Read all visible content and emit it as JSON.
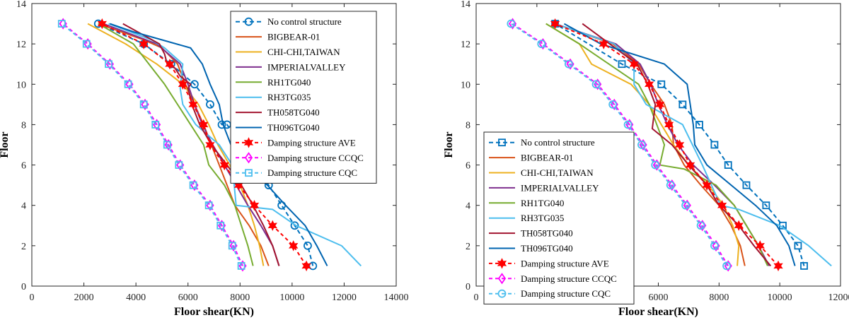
{
  "chart_data": [
    {
      "type": "line",
      "xlabel": "Floor shear(KN)",
      "ylabel": "Floor",
      "xlim": [
        0,
        14000
      ],
      "ylim": [
        0,
        14
      ],
      "xticks": [
        0,
        2000,
        4000,
        6000,
        8000,
        10000,
        12000,
        14000
      ],
      "yticks": [
        0,
        2,
        4,
        6,
        8,
        10,
        12,
        14
      ],
      "xtick_labels": [
        "0",
        "2000",
        "4000",
        "6000",
        "8000",
        "10000",
        "12000",
        "14000"
      ],
      "ytick_labels": [
        "0",
        "2",
        "4",
        "6",
        "8",
        "10",
        "12",
        "14"
      ],
      "grid": false,
      "legend_position": "top-right",
      "series": [
        {
          "name": "No control structure",
          "color": "#0072BD",
          "dash": "6,4",
          "marker": "circle",
          "x": [
            10800,
            10600,
            10100,
            9600,
            9100,
            8600,
            8050,
            7500,
            7300,
            6850,
            6250,
            5350,
            4300,
            2550
          ],
          "y": [
            1,
            2,
            3,
            4,
            5,
            6,
            7,
            8,
            8,
            9,
            10,
            11,
            12,
            13
          ]
        },
        {
          "name": "BIGBEAR-01",
          "color": "#D95319",
          "dash": "",
          "marker": "none",
          "x": [
            9100,
            8800,
            8350,
            7800,
            7500,
            7200,
            6900,
            6600,
            6250,
            5900,
            5600,
            5000,
            4300,
            2550
          ],
          "y": [
            1,
            2,
            3,
            4,
            5,
            6,
            7,
            8,
            9,
            10,
            11,
            11.8,
            12.2,
            13
          ]
        },
        {
          "name": "CHI-CHI,TAIWAN",
          "color": "#EDB120",
          "dash": "",
          "marker": "none",
          "x": [
            8900,
            8750,
            8550,
            8300,
            8000,
            7600,
            7150,
            6800,
            6400,
            5800,
            4800,
            3600,
            2150
          ],
          "y": [
            1,
            2,
            3,
            4,
            5,
            6,
            7,
            8,
            9,
            10,
            11,
            12,
            13
          ]
        },
        {
          "name": "IMPERIALVALLEY",
          "color": "#7E2F8E",
          "dash": "",
          "marker": "none",
          "x": [
            9500,
            9250,
            8800,
            8300,
            7850,
            7400,
            6950,
            6550,
            6250,
            6000,
            5700,
            4800,
            2750
          ],
          "y": [
            1,
            2,
            3,
            4,
            5,
            6,
            7,
            8,
            9,
            10,
            11,
            12,
            13
          ]
        },
        {
          "name": "RH1TG040",
          "color": "#77AC30",
          "dash": "",
          "marker": "none",
          "x": [
            8500,
            8300,
            8050,
            7800,
            7400,
            6800,
            6600,
            6100,
            5600,
            5100,
            4500,
            3900,
            2550
          ],
          "y": [
            1,
            2,
            3,
            4,
            5,
            6,
            7,
            8,
            9,
            10,
            11,
            12,
            13
          ]
        },
        {
          "name": "RH3TG035",
          "color": "#4DBEEE",
          "dash": "",
          "marker": "none",
          "x": [
            12650,
            11900,
            10150,
            9250,
            7850,
            7700,
            7200,
            6300,
            5800,
            5700,
            5800,
            5100,
            4600,
            2950
          ],
          "y": [
            1,
            2,
            3,
            3.8,
            4,
            6,
            7,
            8,
            9,
            9.8,
            11,
            11.8,
            12.2,
            13
          ]
        },
        {
          "name": "TH058TG040",
          "color": "#A2142F",
          "dash": "",
          "marker": "none",
          "x": [
            9500,
            9250,
            8900,
            8500,
            8050,
            7500,
            6900,
            6450,
            6150,
            6000,
            6100,
            5700,
            5500,
            5200,
            5100,
            4900,
            3500
          ],
          "y": [
            1,
            2,
            3,
            4,
            5,
            6,
            7,
            8,
            9,
            9.8,
            10,
            10.4,
            10.8,
            11,
            11.5,
            12,
            13
          ]
        },
        {
          "name": "TH096TG040",
          "color": "#0064B0",
          "dash": "",
          "marker": "none",
          "x": [
            11350,
            10950,
            10500,
            9750,
            9050,
            8200,
            7650,
            7350,
            7200,
            6850,
            6550,
            6100,
            3900,
            3000
          ],
          "y": [
            1,
            2,
            3,
            4,
            5,
            6,
            7,
            8,
            9,
            10,
            11,
            11.8,
            12.6,
            13
          ]
        },
        {
          "name": "Damping structure AVE",
          "color": "#FF0000",
          "dash": "5,4",
          "marker": "star",
          "x": [
            10550,
            10050,
            9250,
            8550,
            7950,
            7400,
            6850,
            6600,
            6200,
            5800,
            5300,
            4300,
            2700
          ],
          "y": [
            1,
            2,
            3,
            4,
            5,
            6,
            7,
            8,
            9,
            10,
            11,
            12,
            13
          ]
        },
        {
          "name": "Damping structure CCQC",
          "color": "#FF00FF",
          "dash": "5,4",
          "marker": "diamond",
          "x": [
            8100,
            7750,
            7300,
            6850,
            6250,
            5700,
            5250,
            4800,
            4350,
            3750,
            3000,
            2150,
            1200
          ],
          "y": [
            1,
            2,
            3,
            4,
            5,
            6,
            7,
            8,
            9,
            10,
            11,
            12,
            13
          ]
        },
        {
          "name": "Damping structure CQC",
          "color": "#4DBEEE",
          "dash": "5,4",
          "marker": "square",
          "x": [
            8050,
            7700,
            7250,
            6800,
            6200,
            5650,
            5200,
            4750,
            4300,
            3700,
            2950,
            2100,
            1150
          ],
          "y": [
            1,
            2,
            3,
            4,
            5,
            6,
            7,
            8,
            9,
            10,
            11,
            12,
            13
          ]
        }
      ]
    },
    {
      "type": "line",
      "xlabel": "Floor shear(KN)",
      "ylabel": "Floor",
      "xlim": [
        0,
        12000
      ],
      "ylim": [
        0,
        14
      ],
      "xticks": [
        0,
        2000,
        4000,
        6000,
        8000,
        10000,
        12000
      ],
      "yticks": [
        0,
        2,
        4,
        6,
        8,
        10,
        12,
        14
      ],
      "xtick_labels": [
        "0",
        "2000",
        "4000",
        "6000",
        "8000",
        "10000",
        "12000"
      ],
      "ytick_labels": [
        "0",
        "2",
        "4",
        "6",
        "8",
        "10",
        "12",
        "14"
      ],
      "grid": false,
      "legend_position": "bottom-left",
      "series": [
        {
          "name": "No control structure",
          "color": "#0072BD",
          "dash": "6,4",
          "marker": "square",
          "x": [
            10800,
            10600,
            10100,
            9550,
            8900,
            8300,
            7850,
            7350,
            6800,
            6100,
            4800,
            2600
          ],
          "y": [
            1,
            2,
            3,
            4,
            5,
            6,
            7,
            8,
            9,
            10,
            11,
            13
          ]
        },
        {
          "name": "BIGBEAR-01",
          "color": "#D95319",
          "dash": "",
          "marker": "none",
          "x": [
            8850,
            8700,
            8400,
            8000,
            7400,
            6850,
            6500,
            6450,
            6200,
            5750,
            5350,
            4500,
            2600
          ],
          "y": [
            1,
            2,
            3,
            4,
            5,
            6,
            7,
            8,
            9,
            10,
            11,
            12,
            13
          ]
        },
        {
          "name": "CHI-CHI,TAIWAN",
          "color": "#EDB120",
          "dash": "",
          "marker": "none",
          "x": [
            8600,
            8650,
            8450,
            8150,
            7650,
            7000,
            6500,
            6100,
            5700,
            5100,
            3800,
            3400,
            2300
          ],
          "y": [
            1,
            2,
            3,
            4,
            5,
            6,
            7,
            8,
            9,
            10,
            11,
            12,
            13
          ]
        },
        {
          "name": "IMPERIALVALLEY",
          "color": "#7E2F8E",
          "dash": "",
          "marker": "none",
          "x": [
            9650,
            9300,
            8900,
            8500,
            7850,
            7150,
            6650,
            6300,
            6000,
            5750,
            5400,
            4600,
            2600
          ],
          "y": [
            1,
            2,
            3,
            4,
            5,
            6,
            7,
            8,
            9,
            10,
            11,
            12,
            13
          ]
        },
        {
          "name": "RH1TG040",
          "color": "#77AC30",
          "dash": "",
          "marker": "none",
          "x": [
            9600,
            9300,
            8900,
            8500,
            7900,
            6850,
            6050,
            6200,
            5950,
            5700,
            5350,
            3400,
            2300
          ],
          "y": [
            1,
            2,
            3,
            4,
            5,
            5.8,
            6,
            7,
            8,
            9,
            10,
            12,
            13
          ]
        },
        {
          "name": "RH3TG035",
          "color": "#4DBEEE",
          "dash": "",
          "marker": "none",
          "x": [
            11700,
            10950,
            10000,
            8650,
            8050,
            7450,
            6800,
            5600,
            5200,
            5200,
            4550,
            2600
          ],
          "y": [
            1,
            2,
            3,
            3.8,
            4,
            6,
            8,
            9,
            10,
            11,
            12,
            13
          ]
        },
        {
          "name": "TH058TG040",
          "color": "#A2142F",
          "dash": "",
          "marker": "none",
          "x": [
            9700,
            9150,
            8650,
            8000,
            7600,
            7000,
            6450,
            5800,
            5900,
            5650,
            5300,
            4400,
            3500
          ],
          "y": [
            1,
            2,
            3,
            4,
            5,
            6,
            7,
            7.8,
            9,
            10,
            11,
            12,
            13
          ]
        },
        {
          "name": "TH096TG040",
          "color": "#0064B0",
          "dash": "",
          "marker": "none",
          "x": [
            10500,
            10300,
            9900,
            9200,
            8400,
            7600,
            7200,
            7150,
            7050,
            6950,
            6200,
            4100,
            2900
          ],
          "y": [
            1,
            2,
            3,
            4,
            5,
            6,
            7,
            8,
            9,
            10,
            11,
            12,
            13
          ]
        },
        {
          "name": "Damping structure AVE",
          "color": "#FF0000",
          "dash": "5,4",
          "marker": "star",
          "x": [
            9950,
            9350,
            8650,
            8100,
            7600,
            7050,
            6700,
            6350,
            6050,
            5700,
            5200,
            4200,
            2600
          ],
          "y": [
            1,
            2,
            3,
            4,
            5,
            6,
            7,
            8,
            9,
            10,
            11,
            12,
            13
          ]
        },
        {
          "name": "Damping structure CCQC",
          "color": "#FF00FF",
          "dash": "5,4",
          "marker": "diamond",
          "x": [
            8300,
            7900,
            7450,
            6950,
            6450,
            5950,
            5500,
            5050,
            4550,
            4000,
            3100,
            2200,
            1200
          ],
          "y": [
            1,
            2,
            3,
            4,
            5,
            6,
            7,
            8,
            9,
            10,
            11,
            12,
            13
          ]
        },
        {
          "name": "Damping structure CQC",
          "color": "#4DBEEE",
          "dash": "5,4",
          "marker": "circle",
          "x": [
            8250,
            7850,
            7400,
            6900,
            6400,
            5900,
            5450,
            5000,
            4500,
            3950,
            3050,
            2150,
            1150
          ],
          "y": [
            1,
            2,
            3,
            4,
            5,
            6,
            7,
            8,
            9,
            10,
            11,
            12,
            13
          ]
        }
      ]
    }
  ]
}
